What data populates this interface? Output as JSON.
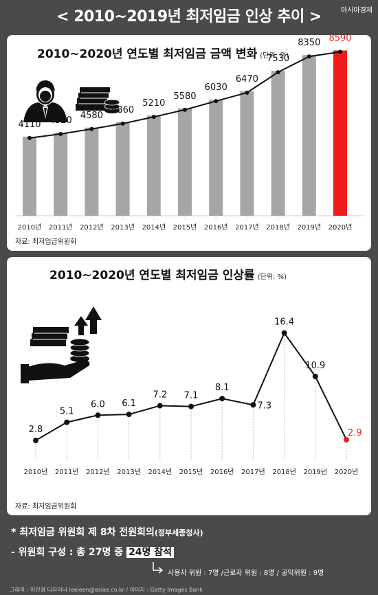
{
  "header": {
    "title": "< 2010~2019년 최저임금 인상 추이 >",
    "brand": "아시아경제"
  },
  "chart_data": [
    {
      "type": "bar",
      "title": "2010~2020년 연도별 최저임금 금액 변화",
      "unit": "(단위: 원)",
      "categories": [
        "2010년",
        "2011년",
        "2012년",
        "2013년",
        "2014년",
        "2015년",
        "2016년",
        "2017년",
        "2018년",
        "2019년",
        "2020년"
      ],
      "values": [
        4110,
        4320,
        4580,
        4860,
        5210,
        5580,
        6030,
        6470,
        7530,
        8350,
        8590
      ],
      "ylim": [
        0,
        9000
      ],
      "colors": {
        "bar": "#a6a6a6",
        "highlight": "#ee1c1c",
        "line": "#111111"
      },
      "source": "자료: 최저임금위원회"
    },
    {
      "type": "line",
      "title": "2010~2020년 연도별 최저임금 인상률",
      "unit": "(단위: %)",
      "categories": [
        "2010년",
        "2011년",
        "2012년",
        "2013년",
        "2014년",
        "2015년",
        "2016년",
        "2017년",
        "2018년",
        "2019년",
        "2020년"
      ],
      "values": [
        2.8,
        5.1,
        6.0,
        6.1,
        7.2,
        7.1,
        8.1,
        7.3,
        16.4,
        10.9,
        2.9
      ],
      "labels": [
        "2.8",
        "5.1",
        "6.0",
        "6.1",
        "7.2",
        "7.1",
        "8.1",
        "7.3",
        "16.4",
        "10.9",
        "2.9"
      ],
      "ylim": [
        0,
        18
      ],
      "colors": {
        "line": "#111111",
        "highlight": "#ee1c1c"
      },
      "source": "자료: 최저임금위원회"
    }
  ],
  "notes": {
    "line1": "* 최저임금 위원회 제 8차 전원회의",
    "line1_paren": "(정부세종청사)",
    "line2_prefix": "- 위원회 구성 : 총 27명 중",
    "line2_highlight": "24명 참석",
    "line3": "사용자 위원 : 7명 /근로자 위원 : 8명 / 공익위원 : 9명"
  },
  "credit": "그래픽 : 이진경 디자이너 leejeen@asiae.co.kr / 이미지 : Getty Images Bank"
}
